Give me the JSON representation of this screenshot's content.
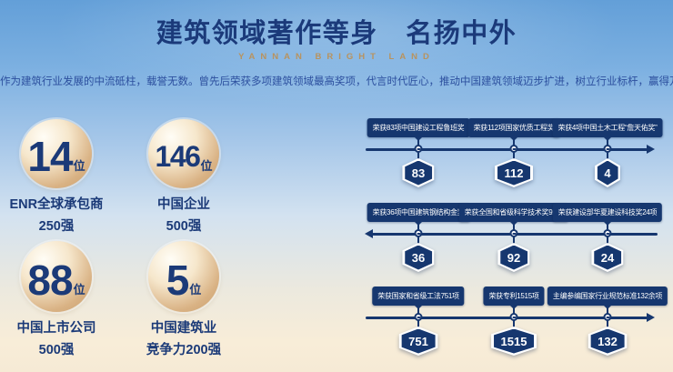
{
  "header": {
    "title": "建筑领域著作等身　名扬中外",
    "subtitle": "YANNAN BRIGHT LAND",
    "description": "作为建筑行业发展的中流砥柱，载誉无数。曾先后荣获多项建筑领域最高奖项，代言时代匠心，推动中国建筑领域迈步扩进，树立行业标杆，赢得万千信赖。"
  },
  "stats": [
    {
      "value": "14",
      "unit": "位",
      "line1": "ENR全球承包商",
      "line2": "250强"
    },
    {
      "value": "146",
      "unit": "位",
      "line1": "中国企业",
      "line2": "500强"
    },
    {
      "value": "88",
      "unit": "位",
      "line1": "中国上市公司",
      "line2": "500强"
    },
    {
      "value": "5",
      "unit": "位",
      "line1": "中国建筑业",
      "line2": "竞争力200强"
    }
  ],
  "timeline": {
    "rows": [
      {
        "direction": "right",
        "items": [
          {
            "label": "荣获83项中国建设工程鲁班奖",
            "badge": "83"
          },
          {
            "label": "荣获112项国家优质工程奖",
            "badge": "112"
          },
          {
            "label": "荣获4项中国土木工程“詹天佑奖”",
            "badge": "4"
          }
        ]
      },
      {
        "direction": "left",
        "items": [
          {
            "label": "荣获36项中国建筑钢结构金奖",
            "badge": "36"
          },
          {
            "label": "荣获全国和省级科学技术奖92项",
            "badge": "92"
          },
          {
            "label": "荣获建设部华夏建设科技奖24项",
            "badge": "24"
          }
        ]
      },
      {
        "direction": "right",
        "items": [
          {
            "label": "荣获国家和省级工法751项",
            "badge": "751"
          },
          {
            "label": "荣获专利1515项",
            "badge": "1515"
          },
          {
            "label": "主编参编国家行业规范标准132余项",
            "badge": "132"
          }
        ]
      }
    ]
  },
  "colors": {
    "navy": "#16376f",
    "title_navy": "#1b3a7a",
    "gold_text": "#b8935f",
    "circle_gold": "#c89e6c",
    "description_blue": "#2c4f9e"
  }
}
